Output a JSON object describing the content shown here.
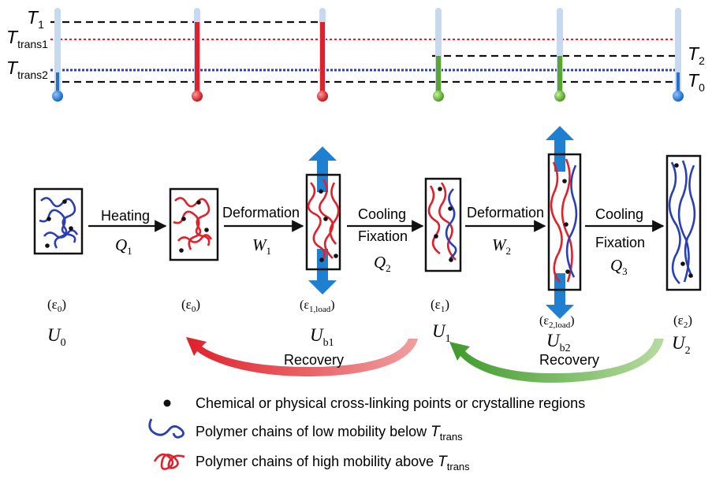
{
  "thermometers": {
    "T1": "T",
    "T1_sub": "1",
    "Ttrans1": "T",
    "Ttrans1_sub": "trans1",
    "Ttrans2": "T",
    "Ttrans2_sub": "trans2",
    "T2": "T",
    "T2_sub": "2",
    "T0": "T",
    "T0_sub": "0"
  },
  "steps": {
    "heating": "Heating",
    "heating_work": "Q",
    "heating_work_sub": "1",
    "deformation1": "Deformation",
    "deformation1_work": "W",
    "deformation1_work_sub": "1",
    "cooling1": "Cooling",
    "fixation1": "Fixation",
    "cooling1_work": "Q",
    "cooling1_work_sub": "2",
    "deformation2": "Deformation",
    "deformation2_work": "W",
    "deformation2_work_sub": "2",
    "cooling2": "Cooling",
    "fixation2": "Fixation",
    "cooling2_work": "Q",
    "cooling2_work_sub": "3"
  },
  "strains": {
    "s0a": "(ε",
    "s0a_sub": "0",
    "s0b": "(ε",
    "s0b_sub": "0",
    "s1load": "(ε",
    "s1load_sub": "1,load",
    "s1": "(ε",
    "s1_sub": "1",
    "s2load": "(ε",
    "s2load_sub": "2,load",
    "s2": "(ε",
    "s2_sub": "2",
    "close": ")"
  },
  "energies": {
    "U0": "U",
    "U0_sub": "0",
    "Ub1": "U",
    "Ub1_sub": "b1",
    "U1": "U",
    "U1_sub": "1",
    "Ub2": "U",
    "Ub2_sub": "b2",
    "U2": "U",
    "U2_sub": "2"
  },
  "recovery": {
    "label1": "Recovery",
    "label2": "Recovery"
  },
  "legend": {
    "dot_text": "Chemical or physical cross-linking points or crystalline regions",
    "blue_text": "Polymer chains of low mobility below ",
    "red_text": "Polymer chains of high mobility above ",
    "T": "T",
    "T_sub": "trans"
  },
  "colors": {
    "red": "#e0202a",
    "blue": "#2b3fb5",
    "green": "#5aa532",
    "arrow_blue": "#1f7fd0",
    "tube": "#c6d9ee"
  }
}
